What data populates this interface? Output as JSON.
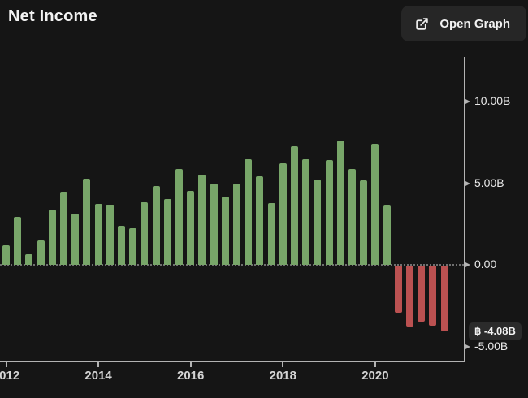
{
  "header": {
    "title": "Net Income",
    "open_graph_label": "Open Graph"
  },
  "colors": {
    "background": "#151515",
    "button_bg": "#262626",
    "badge_bg": "#2b2b2b",
    "positive": "#78a669",
    "negative": "#bb5151",
    "axis": "#b3b3b3",
    "zero_line": "#707070",
    "text_primary": "#f2f2f2",
    "text_axis": "#e9e9e9"
  },
  "chart_data": {
    "type": "bar",
    "title": "Net Income",
    "currency_symbol": "฿",
    "unit": "billions",
    "x": [
      "2012 Q1",
      "2012 Q2",
      "2012 Q3",
      "2012 Q4",
      "2013 Q1",
      "2013 Q2",
      "2013 Q3",
      "2013 Q4",
      "2014 Q1",
      "2014 Q2",
      "2014 Q3",
      "2014 Q4",
      "2015 Q1",
      "2015 Q2",
      "2015 Q3",
      "2015 Q4",
      "2016 Q1",
      "2016 Q2",
      "2016 Q3",
      "2016 Q4",
      "2017 Q1",
      "2017 Q2",
      "2017 Q3",
      "2017 Q4",
      "2018 Q1",
      "2018 Q2",
      "2018 Q3",
      "2018 Q4",
      "2019 Q1",
      "2019 Q2",
      "2019 Q3",
      "2019 Q4",
      "2020 Q1",
      "2020 Q2",
      "2020 Q3",
      "2020 Q4",
      "2021 Q1",
      "2021 Q2",
      "2021 Q3"
    ],
    "values": [
      1.2,
      2.95,
      0.65,
      1.5,
      3.4,
      4.5,
      3.15,
      5.25,
      3.75,
      3.7,
      2.4,
      2.25,
      3.85,
      4.85,
      4.05,
      5.85,
      4.55,
      5.5,
      5.0,
      4.2,
      5.0,
      6.45,
      5.4,
      3.8,
      6.2,
      7.25,
      6.45,
      5.2,
      6.4,
      7.6,
      5.85,
      5.15,
      7.4,
      3.65,
      -2.95,
      -3.8,
      -3.5,
      -3.75,
      -4.08
    ],
    "x_ticks": [
      {
        "label": "2012",
        "index": 0
      },
      {
        "label": "2014",
        "index": 8
      },
      {
        "label": "2016",
        "index": 16
      },
      {
        "label": "2018",
        "index": 24
      },
      {
        "label": "2020",
        "index": 32
      }
    ],
    "y_ticks": [
      {
        "label": "10.00B",
        "value": 10
      },
      {
        "label": "5.00B",
        "value": 5
      },
      {
        "label": "0.00",
        "value": 0
      },
      {
        "label": "-5.00B",
        "value": -5
      }
    ],
    "y_axis_range": [
      -5.9,
      12.75
    ],
    "zero_line_style": "dotted",
    "grid": false,
    "legend_position": "none",
    "latest_value": -4.08,
    "latest_value_label": "฿ -4.08B"
  }
}
